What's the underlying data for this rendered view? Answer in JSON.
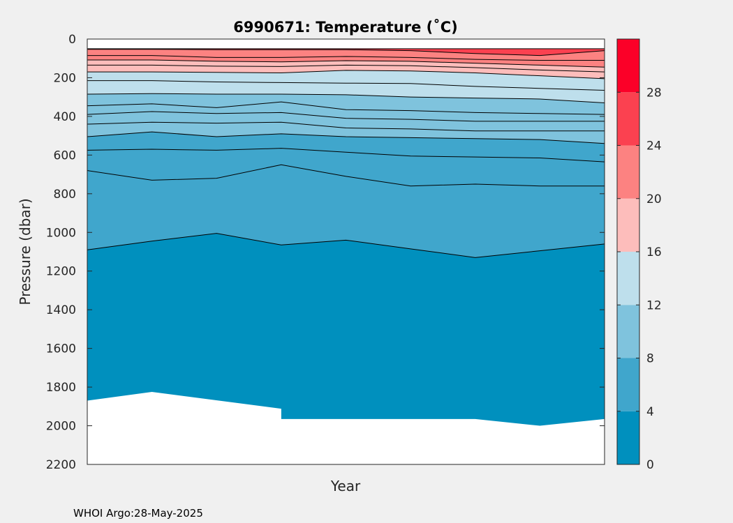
{
  "chart_data": {
    "type": "filled-contour",
    "title": "6990671:  Temperature (˚C)",
    "xlabel": "Year",
    "ylabel": "Pressure (dbar)",
    "ylim": [
      0,
      2200
    ],
    "y_reversed": true,
    "yticks": [
      "0",
      "200",
      "400",
      "600",
      "800",
      "1000",
      "1200",
      "1400",
      "1600",
      "1800",
      "2000",
      "2200"
    ],
    "xlim": [
      0,
      1
    ],
    "colorbar": {
      "ticks": [
        "0",
        "4",
        "8",
        "12",
        "16",
        "20",
        "24",
        "28"
      ],
      "range": [
        0,
        32
      ],
      "bins": [
        {
          "min": 0,
          "max": 4,
          "color": "#0090be"
        },
        {
          "min": 4,
          "max": 8,
          "color": "#40a6cc"
        },
        {
          "min": 8,
          "max": 12,
          "color": "#7fc3dd"
        },
        {
          "min": 12,
          "max": 16,
          "color": "#bedfec"
        },
        {
          "min": 16,
          "max": 20,
          "color": "#fdbdbb"
        },
        {
          "min": 20,
          "max": 24,
          "color": "#fc8281"
        },
        {
          "min": 24,
          "max": 28,
          "color": "#fb4150"
        },
        {
          "min": 28,
          "max": 32,
          "color": "#fb0028"
        }
      ]
    },
    "x": [
      0,
      0.125,
      0.25,
      0.375,
      0.5,
      0.625,
      0.75,
      0.875,
      1
    ],
    "data_bottom": [
      1870,
      1825,
      1870,
      1965,
      1965,
      1965,
      1965,
      2000,
      1965
    ],
    "bands": [
      {
        "color": "#fb4150",
        "top": [
          50,
          50,
          50,
          50,
          50,
          50,
          50,
          50,
          50
        ]
      },
      {
        "color": "#fc8281",
        "top": [
          53,
          53,
          55,
          55,
          55,
          60,
          75,
          85,
          60
        ]
      },
      {
        "color": "#fdbdbb",
        "top": [
          108,
          108,
          115,
          118,
          112,
          115,
          125,
          135,
          145
        ]
      },
      {
        "color": "#bedfec",
        "top": [
          170,
          170,
          172,
          175,
          162,
          165,
          175,
          190,
          205
        ]
      },
      {
        "color": "#7fc3dd",
        "top": [
          285,
          282,
          285,
          285,
          288,
          300,
          305,
          310,
          330
        ]
      },
      {
        "color": "#40a6cc",
        "top": [
          505,
          480,
          505,
          490,
          505,
          510,
          515,
          520,
          540
        ]
      },
      {
        "color": "#0090be",
        "top": [
          1090,
          1045,
          1005,
          1065,
          1040,
          1085,
          1130,
          1095,
          1060
        ]
      }
    ],
    "contours": [
      [
        50,
        50,
        50,
        50,
        50,
        50,
        50,
        50,
        50
      ],
      [
        53,
        53,
        55,
        55,
        55,
        60,
        75,
        85,
        60
      ],
      [
        85,
        85,
        95,
        95,
        90,
        95,
        105,
        110,
        110
      ],
      [
        108,
        108,
        115,
        118,
        112,
        115,
        125,
        135,
        145
      ],
      [
        135,
        135,
        140,
        142,
        135,
        138,
        148,
        160,
        170
      ],
      [
        170,
        170,
        172,
        175,
        162,
        165,
        175,
        190,
        205
      ],
      [
        215,
        215,
        222,
        225,
        228,
        230,
        245,
        255,
        265
      ],
      [
        285,
        282,
        285,
        285,
        288,
        300,
        305,
        310,
        330
      ],
      [
        345,
        335,
        355,
        325,
        365,
        370,
        380,
        385,
        390
      ],
      [
        390,
        375,
        385,
        380,
        410,
        415,
        425,
        425,
        425
      ],
      [
        440,
        430,
        435,
        430,
        460,
        465,
        475,
        475,
        475
      ],
      [
        505,
        480,
        505,
        490,
        505,
        510,
        515,
        520,
        540
      ],
      [
        575,
        570,
        575,
        565,
        585,
        605,
        610,
        615,
        635
      ],
      [
        680,
        730,
        720,
        650,
        710,
        760,
        750,
        760,
        760
      ],
      [
        1090,
        1045,
        1005,
        1065,
        1040,
        1085,
        1130,
        1095,
        1060
      ]
    ]
  },
  "credit": "WHOI Argo:28-May-2025"
}
